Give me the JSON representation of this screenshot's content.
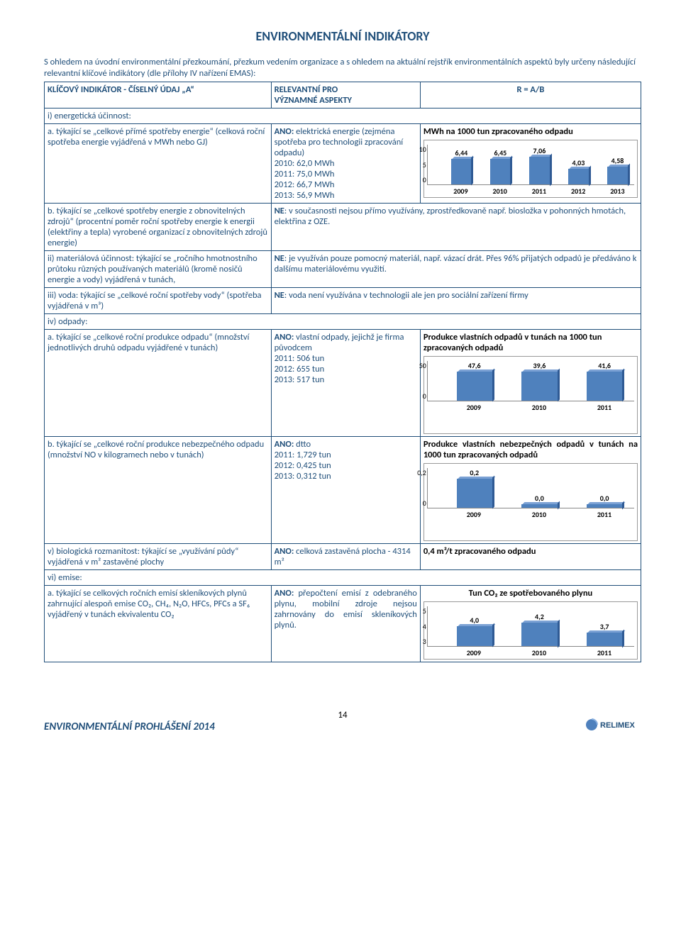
{
  "title": "ENVIRONMENTÁLNÍ INDIKÁTORY",
  "lead": "S ohledem na úvodní environmentální přezkoumání, přezkum vedením organizace a s ohledem na aktuální rejstřík environmentálních aspektů byly určeny následující relevantní klíčové indikátory (dle přílohy IV nařízení EMAS):",
  "header": {
    "col1": "KLÍČOVÝ INDIKÁTOR  - ČÍSELNÝ ÚDAJ „A“",
    "col2a": "RELEVANTNÍ PRO",
    "col2b": "VÝZNAMNÉ ASPEKTY",
    "col3": "R = A/B"
  },
  "row_i": "i)    energetická účinnost:",
  "row_ia": {
    "ind": "a.   týkající se „celkové přímé spotřeby energie“ (celková roční spotřeba energie vyjádřená v MWh nebo GJ)",
    "rel_label": "ANO:",
    "rel_text": "elektrická energie (zejména spotřeba pro technologii zpracování odpadu)",
    "rel_lines": [
      "2010: 62,0 MWh",
      "2011: 75,0 MWh",
      "2012: 66,7 MWh",
      "2013: 56,9 MWh"
    ],
    "chart": {
      "title": "MWh na 1000 tun zpracovaného odpadu",
      "ylim": [
        0,
        10
      ],
      "yticks": [
        "10",
        "5",
        "0"
      ],
      "categories": [
        "2009",
        "2010",
        "2011",
        "2012",
        "2013"
      ],
      "values": [
        6.44,
        6.45,
        7.06,
        4.03,
        4.58
      ],
      "labels": [
        "6,44",
        "6,45",
        "7,06",
        "4,03",
        "4,58"
      ],
      "bar_color": "#4f81bd"
    }
  },
  "row_ib": {
    "ind": "b.   týkající se „celkové spotřeby energie z obnovitelných zdrojů“ (procentní poměr roční spotřeby energie k energii (elektřiny a tepla) vyrobené organizací z obnovitelných zdrojů energie)",
    "rel": "NE: v současnosti nejsou přímo využívány, zprostředkovaně např. biosložka v pohonných hmotách, elektřina z OZE."
  },
  "row_ii": {
    "ind": "ii)   materiálová účinnost: týkající se „ročního hmotnostního průtoku různých používaných materiálů (kromě nosičů energie a vody) vyjádřená v tunách,",
    "rel": "NE: je využíván pouze pomocný materiál, např. vázací drát. Přes 96% přijatých odpadů je předáváno k dalšímu materiálovému využití."
  },
  "row_iii": {
    "ind": "iii)  voda: týkající se „celkové roční spotřeby vody“ (spotřeba vyjádřená v m³)",
    "rel": "NE: voda není využívána v technologii ale jen pro sociální zařízení firmy"
  },
  "row_iv": "iv)  odpady:",
  "row_iva": {
    "ind": "a.   týkající se „celkové roční produkce odpadu“ (množství jednotlivých druhů odpadu vyjádřené v tunách)",
    "rel_label": "ANO:",
    "rel_text": "vlastní odpady, jejichž je firma původcem",
    "rel_lines": [
      "2011: 506 tun",
      "2012: 655 tun",
      "2013: 517 tun"
    ],
    "chart": {
      "title": "Produkce vlastních odpadů v tunách na 1000 tun zpracovaných odpadů",
      "ylim": [
        0,
        50
      ],
      "yticks": [
        "50",
        "0"
      ],
      "categories": [
        "2009",
        "2010",
        "2011"
      ],
      "values": [
        47.6,
        39.6,
        41.6
      ],
      "labels": [
        "47,6",
        "39,6",
        "41,6"
      ],
      "bar_color": "#4f81bd"
    }
  },
  "row_ivb": {
    "ind": "b.   týkající se „celkové roční produkce nebezpečného odpadu (množství NO v kilogramech nebo v tunách)",
    "rel_label": "ANO:",
    "rel_text": "dtto",
    "rel_lines": [
      "2011: 1,729 tun",
      "2012: 0,425 tun",
      "2013: 0,312 tun"
    ],
    "chart": {
      "title": "Produkce vlastních nebezpečných odpadů v tunách na 1000 tun zpracovaných odpadů",
      "ylim": [
        0,
        0.2
      ],
      "yticks": [
        "0,2",
        "0"
      ],
      "categories": [
        "2009",
        "2010",
        "2011"
      ],
      "values": [
        0.2,
        0.02,
        0.02
      ],
      "labels": [
        "0,2",
        "0,0",
        "0,0"
      ],
      "bar_color": "#4f81bd"
    }
  },
  "row_v": {
    "ind": "v)    biologická rozmanitost: týkající se „využívání půdy“ vyjádřená v m² zastavěné plochy",
    "rel_label": "ANO:",
    "rel_text": "celková zastavěná plocha - 4314 m²",
    "res": "0,4 m²/t zpracovaného odpadu"
  },
  "row_vi": "vi)  emise:",
  "row_via": {
    "ind": "a.   týkající se celkových ročních emisí skleníkových plynů zahrnující alespoň emise CO₂, CH₄, N₂O, HFCs, PFCs a SF₆ vyjádřený v tunách ekvivalentu CO₂",
    "rel_label": "ANO:",
    "rel_text": "přepočtení emisí z odebraného plynu, mobilní zdroje nejsou zahrnovány do emisí skleníkových plynů.",
    "chart": {
      "title": "Tun CO₂ ze spotřebovaného plynu",
      "ylim": [
        3,
        5
      ],
      "yticks": [
        "5",
        "4",
        "3"
      ],
      "categories": [
        "2009",
        "2010",
        "2011"
      ],
      "values": [
        4.0,
        4.2,
        3.7
      ],
      "labels": [
        "4,0",
        "4,2",
        "3,7"
      ],
      "bar_color": "#4f81bd"
    }
  },
  "footer": {
    "title": "ENVIRONMENTÁLNÍ PROHLÁŠENÍ 2014",
    "page": "14",
    "logo_text": "RELIMEX"
  }
}
